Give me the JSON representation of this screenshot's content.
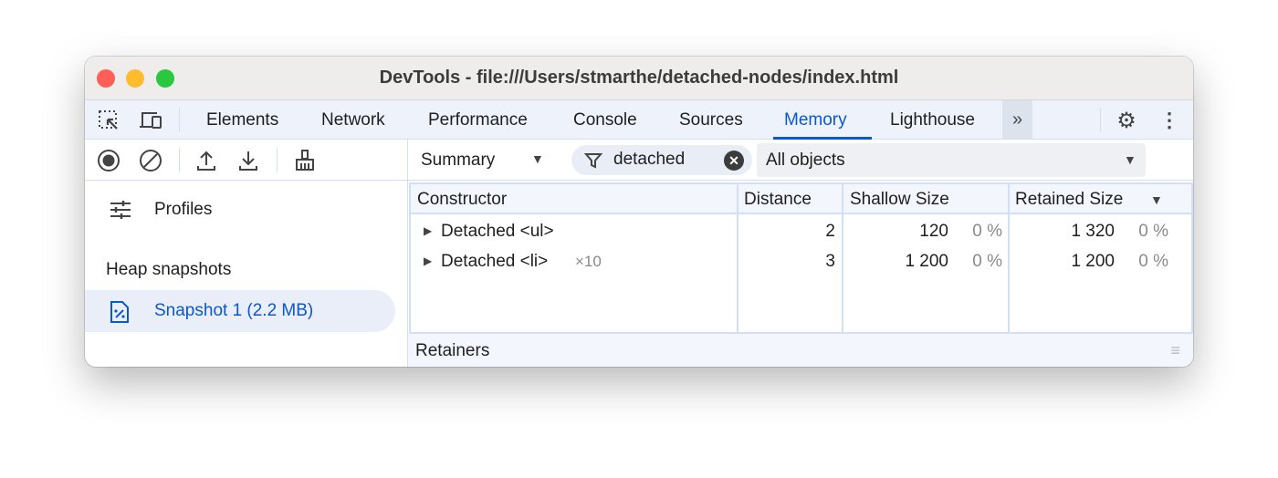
{
  "window": {
    "title": "DevTools - file:///Users/stmarthe/detached-nodes/index.html"
  },
  "tabs": [
    {
      "label": "Elements"
    },
    {
      "label": "Network"
    },
    {
      "label": "Performance"
    },
    {
      "label": "Console"
    },
    {
      "label": "Sources"
    },
    {
      "label": "Memory",
      "active": true
    },
    {
      "label": "Lighthouse"
    }
  ],
  "toolbar": {
    "view": "Summary",
    "filter": "detached",
    "objects": "All objects"
  },
  "sidebar": {
    "profiles": "Profiles",
    "section": "Heap snapshots",
    "snapshot": "Snapshot 1 (2.2 MB)"
  },
  "table": {
    "headers": [
      "Constructor",
      "Distance",
      "Shallow Size",
      "Retained Size"
    ],
    "rows": [
      {
        "constructor": "Detached <ul>",
        "count": "",
        "distance": "2",
        "shallow": "120",
        "shallow_pct": "0 %",
        "retained": "1 320",
        "retained_pct": "0 %"
      },
      {
        "constructor": "Detached <li>",
        "count": "×10",
        "distance": "3",
        "shallow": "1 200",
        "shallow_pct": "0 %",
        "retained": "1 200",
        "retained_pct": "0 %"
      }
    ]
  },
  "retainers": "Retainers",
  "colors": {
    "accent": "#0b57d0",
    "close": "#ff5f57",
    "minimize": "#febc2e",
    "maximize": "#28c840"
  }
}
